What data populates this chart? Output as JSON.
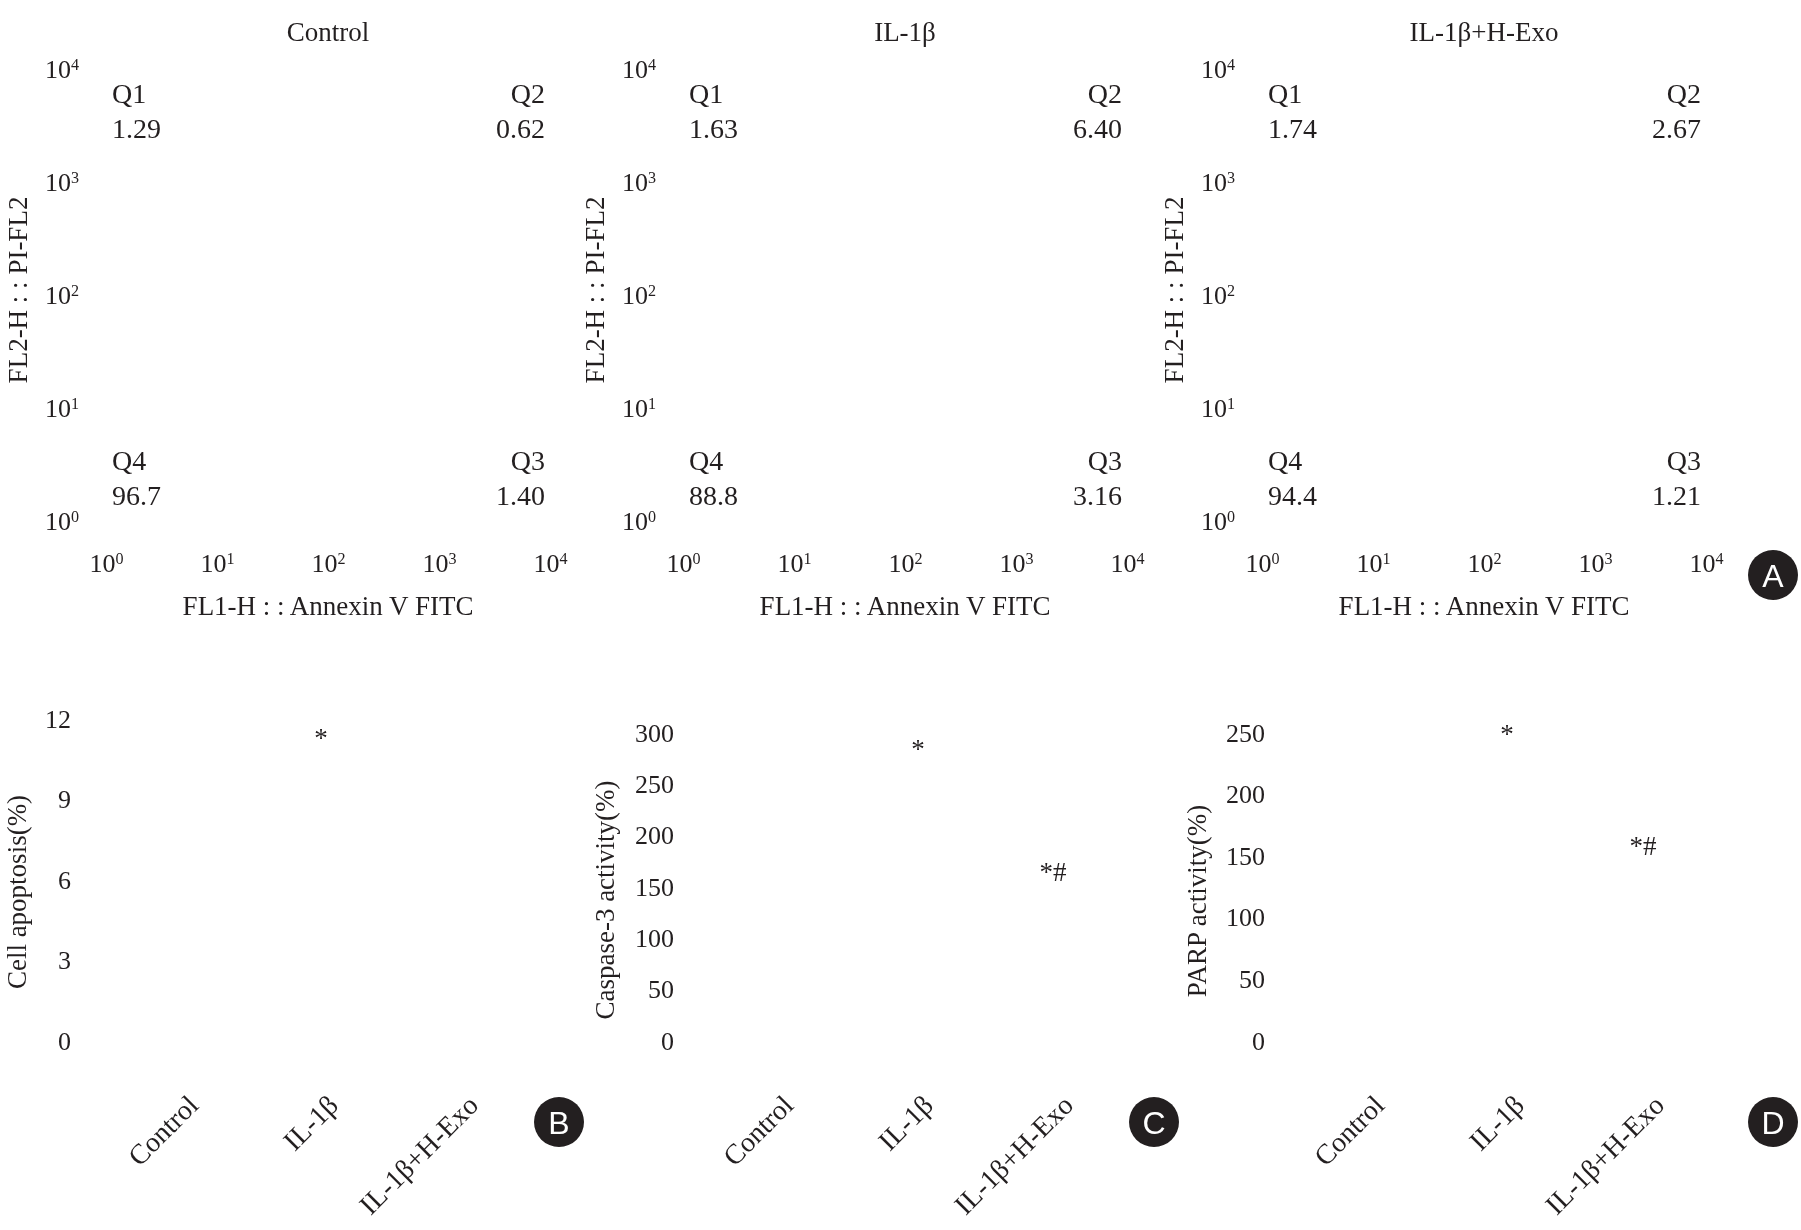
{
  "chart_data": [
    {
      "type": "scatter",
      "title": "Control",
      "xlabel": "FL1-H : : Annexin V FITC",
      "ylabel": "FL2-H : : PI-FL2",
      "log": "xy",
      "xlim": [
        1,
        10000
      ],
      "ylim": [
        1,
        10000
      ],
      "xticks": [
        {
          "value": 1,
          "label": "10$^{0}$"
        },
        {
          "value": 10,
          "label": "10$^{1}$"
        },
        {
          "value": 100,
          "label": "10$^{2}$"
        },
        {
          "value": 1000,
          "label": "10$^{3}$"
        },
        {
          "value": 10000,
          "label": "10$^{4}$"
        }
      ],
      "yticks": [
        {
          "value": 1,
          "label": "10$^{0}$"
        },
        {
          "value": 10,
          "label": "10$^{1}$"
        },
        {
          "value": 100,
          "label": "10$^{2}$"
        },
        {
          "value": 1000,
          "label": "10$^{3}$"
        },
        {
          "value": 10000,
          "label": "10$^{4}$"
        }
      ],
      "annotations": [
        "Q1",
        "1.29",
        "Q2",
        "0.62",
        "Q4",
        "96.7",
        "Q3",
        "1.40"
      ]
    },
    {
      "type": "scatter",
      "title": "IL-1β",
      "xlabel": "FL1-H : : Annexin V FITC",
      "ylabel": "FL2-H : : PI-FL2",
      "log": "xy",
      "xlim": [
        1,
        10000
      ],
      "ylim": [
        1,
        10000
      ],
      "xticks": [
        {
          "value": 1,
          "label": "10$^{0}$"
        },
        {
          "value": 10,
          "label": "10$^{1}$"
        },
        {
          "value": 100,
          "label": "10$^{2}$"
        },
        {
          "value": 1000,
          "label": "10$^{3}$"
        },
        {
          "value": 10000,
          "label": "10$^{4}$"
        }
      ],
      "yticks": [
        {
          "value": 1,
          "label": "10$^{0}$"
        },
        {
          "value": 10,
          "label": "10$^{1}$"
        },
        {
          "value": 100,
          "label": "10$^{2}$"
        },
        {
          "value": 1000,
          "label": "10$^{3}$"
        },
        {
          "value": 10000,
          "label": "10$^{4}$"
        }
      ],
      "annotations": [
        "Q1",
        "1.63",
        "Q2",
        "6.40",
        "Q4",
        "88.8",
        "Q3",
        "3.16"
      ]
    },
    {
      "type": "scatter",
      "title": "IL-1β+H-Exo",
      "xlabel": "FL1-H : : Annexin V FITC",
      "ylabel": "FL2-H : : PI-FL2",
      "log": "xy",
      "xlim": [
        1,
        10000
      ],
      "ylim": [
        1,
        10000
      ],
      "xticks": [
        {
          "value": 1,
          "label": "10$^{0}$"
        },
        {
          "value": 10,
          "label": "10$^{1}$"
        },
        {
          "value": 100,
          "label": "10$^{2}$"
        },
        {
          "value": 1000,
          "label": "10$^{3}$"
        },
        {
          "value": 10000,
          "label": "10$^{4}$"
        }
      ],
      "yticks": [
        {
          "value": 1,
          "label": "10$^{0}$"
        },
        {
          "value": 10,
          "label": "10$^{1}$"
        },
        {
          "value": 100,
          "label": "10$^{2}$"
        },
        {
          "value": 1000,
          "label": "10$^{3}$"
        },
        {
          "value": 10000,
          "label": "10$^{4}$"
        }
      ],
      "annotations": [
        "Q1",
        "1.74",
        "Q2",
        "2.67",
        "Q4",
        "94.4",
        "Q3",
        "1.21",
        "A"
      ]
    },
    {
      "type": "bar",
      "ylabel": "Cell apoptosis(%)",
      "categories": [
        "Control",
        "IL-1β",
        "IL-1β+H-Exo"
      ],
      "values": [
        null,
        null,
        null
      ],
      "ylim": [
        0,
        12
      ],
      "yticks": [
        0,
        3,
        6,
        9,
        12
      ],
      "annotations": [
        "*",
        "B"
      ]
    },
    {
      "type": "bar",
      "ylabel": "Caspase-3 activity(%)",
      "categories": [
        "Control",
        "IL-1β",
        "IL-1β+H-Exo"
      ],
      "values": [
        null,
        null,
        null
      ],
      "ylim": [
        0,
        300
      ],
      "yticks": [
        0,
        50,
        100,
        150,
        200,
        250,
        300
      ],
      "annotations": [
        "*",
        "*#",
        "C"
      ]
    },
    {
      "type": "bar",
      "ylabel": "PARP activity(%)",
      "categories": [
        "Control",
        "IL-1β",
        "IL-1β+H-Exo"
      ],
      "values": [
        null,
        null,
        null
      ],
      "ylim": [
        0,
        250
      ],
      "yticks": [
        0,
        50,
        100,
        150,
        200,
        250
      ],
      "annotations": [
        "*",
        "*#",
        "D"
      ]
    }
  ]
}
